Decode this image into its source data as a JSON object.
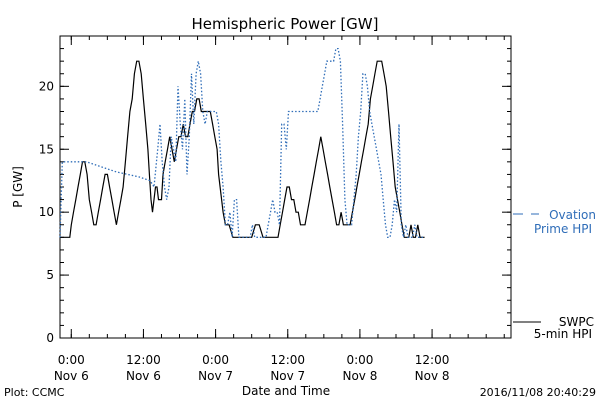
{
  "chart_data": {
    "type": "line",
    "title": "Hemispheric Power [GW]",
    "xlabel": "Date and Time",
    "ylabel": "P [GW]",
    "ylim": [
      0,
      24
    ],
    "xlim": [
      -15,
      585
    ],
    "x_unit": "minutes relative to 2016-11-06 00:00",
    "yticks": [
      {
        "value": 0,
        "label": "0"
      },
      {
        "value": 5,
        "label": "5"
      },
      {
        "value": 10,
        "label": "10"
      },
      {
        "value": 15,
        "label": "15"
      },
      {
        "value": 20,
        "label": "20"
      }
    ],
    "xticks": [
      {
        "value": 0,
        "time": "0:00",
        "date": "Nov 6"
      },
      {
        "value": 96,
        "time": "12:00",
        "date": "Nov 6"
      },
      {
        "value": 192,
        "time": "0:00",
        "date": "Nov 7"
      },
      {
        "value": 288,
        "time": "12:00",
        "date": "Nov 7"
      },
      {
        "value": 384,
        "time": "0:00",
        "date": "Nov 8"
      },
      {
        "value": 480,
        "time": "12:00",
        "date": "Nov 8"
      }
    ],
    "grid": false,
    "series": [
      {
        "name": "SWPC 5-min HPI",
        "style": "solid",
        "color": "#000000",
        "points": [
          [
            -15,
            8
          ],
          [
            -2,
            8
          ],
          [
            0,
            9
          ],
          [
            3,
            10
          ],
          [
            6,
            11
          ],
          [
            9,
            12
          ],
          [
            12,
            13
          ],
          [
            15,
            14
          ],
          [
            18,
            14
          ],
          [
            21,
            13
          ],
          [
            24,
            11
          ],
          [
            27,
            10
          ],
          [
            30,
            9
          ],
          [
            33,
            9
          ],
          [
            36,
            10
          ],
          [
            39,
            11
          ],
          [
            42,
            12
          ],
          [
            45,
            13
          ],
          [
            48,
            13
          ],
          [
            51,
            12
          ],
          [
            54,
            11
          ],
          [
            57,
            10
          ],
          [
            60,
            9
          ],
          [
            63,
            10
          ],
          [
            66,
            11
          ],
          [
            69,
            12
          ],
          [
            72,
            14
          ],
          [
            75,
            16
          ],
          [
            78,
            18
          ],
          [
            81,
            19
          ],
          [
            84,
            21
          ],
          [
            87,
            22
          ],
          [
            90,
            22
          ],
          [
            93,
            21
          ],
          [
            96,
            19
          ],
          [
            99,
            17
          ],
          [
            102,
            15
          ],
          [
            104,
            13
          ],
          [
            106,
            11
          ],
          [
            108,
            10
          ],
          [
            110,
            11
          ],
          [
            112,
            12
          ],
          [
            114,
            12
          ],
          [
            116,
            11
          ],
          [
            118,
            11
          ],
          [
            120,
            11
          ],
          [
            122,
            13
          ],
          [
            125,
            14
          ],
          [
            128,
            15
          ],
          [
            131,
            16
          ],
          [
            134,
            15
          ],
          [
            137,
            14
          ],
          [
            140,
            15
          ],
          [
            143,
            16
          ],
          [
            146,
            16
          ],
          [
            149,
            17
          ],
          [
            152,
            16
          ],
          [
            155,
            16
          ],
          [
            158,
            17
          ],
          [
            161,
            18
          ],
          [
            164,
            18
          ],
          [
            167,
            19
          ],
          [
            170,
            19
          ],
          [
            173,
            18
          ],
          [
            176,
            18
          ],
          [
            179,
            18
          ],
          [
            182,
            18
          ],
          [
            185,
            18
          ],
          [
            188,
            17
          ],
          [
            191,
            16
          ],
          [
            194,
            15
          ],
          [
            196,
            13
          ],
          [
            198,
            12
          ],
          [
            200,
            11
          ],
          [
            202,
            10
          ],
          [
            205,
            9
          ],
          [
            210,
            9
          ],
          [
            215,
            8
          ],
          [
            220,
            8
          ],
          [
            225,
            8
          ],
          [
            230,
            8
          ],
          [
            235,
            8
          ],
          [
            240,
            8
          ],
          [
            245,
            9
          ],
          [
            250,
            9
          ],
          [
            255,
            8
          ],
          [
            260,
            8
          ],
          [
            265,
            8
          ],
          [
            270,
            8
          ],
          [
            275,
            8
          ],
          [
            278,
            9
          ],
          [
            281,
            10
          ],
          [
            284,
            11
          ],
          [
            287,
            12
          ],
          [
            290,
            12
          ],
          [
            293,
            11
          ],
          [
            296,
            11
          ],
          [
            299,
            10
          ],
          [
            302,
            10
          ],
          [
            305,
            9
          ],
          [
            308,
            9
          ],
          [
            311,
            9
          ],
          [
            314,
            10
          ],
          [
            317,
            11
          ],
          [
            320,
            12
          ],
          [
            323,
            13
          ],
          [
            326,
            14
          ],
          [
            329,
            15
          ],
          [
            332,
            16
          ],
          [
            335,
            15
          ],
          [
            338,
            14
          ],
          [
            341,
            13
          ],
          [
            344,
            12
          ],
          [
            347,
            11
          ],
          [
            350,
            10
          ],
          [
            353,
            9
          ],
          [
            356,
            9
          ],
          [
            359,
            10
          ],
          [
            362,
            9
          ],
          [
            365,
            9
          ],
          [
            368,
            9
          ],
          [
            371,
            9
          ],
          [
            374,
            10
          ],
          [
            377,
            11
          ],
          [
            380,
            12
          ],
          [
            383,
            13
          ],
          [
            386,
            14
          ],
          [
            389,
            15
          ],
          [
            392,
            16
          ],
          [
            395,
            17
          ],
          [
            398,
            19
          ],
          [
            401,
            20
          ],
          [
            404,
            21
          ],
          [
            407,
            22
          ],
          [
            410,
            22
          ],
          [
            413,
            22
          ],
          [
            416,
            21
          ],
          [
            419,
            20
          ],
          [
            422,
            18
          ],
          [
            425,
            16
          ],
          [
            428,
            14
          ],
          [
            431,
            12
          ],
          [
            434,
            11
          ],
          [
            437,
            10
          ],
          [
            440,
            9
          ],
          [
            443,
            8
          ],
          [
            446,
            8
          ],
          [
            449,
            8
          ],
          [
            452,
            9
          ],
          [
            455,
            8
          ],
          [
            458,
            8
          ],
          [
            461,
            9
          ],
          [
            464,
            8
          ],
          [
            467,
            8
          ],
          [
            470,
            8
          ]
        ]
      },
      {
        "name": "Ovation Prime HPI",
        "style": "dotted",
        "color": "#2f6db8",
        "points": [
          [
            -15,
            8
          ],
          [
            -12,
            14
          ],
          [
            -8,
            14
          ],
          [
            0,
            14
          ],
          [
            5,
            14
          ],
          [
            10,
            14
          ],
          [
            15,
            14
          ],
          [
            20,
            14
          ],
          [
            30,
            13.8
          ],
          [
            45,
            13.5
          ],
          [
            60,
            13.2
          ],
          [
            75,
            13
          ],
          [
            90,
            12.8
          ],
          [
            105,
            12.5
          ],
          [
            110,
            12
          ],
          [
            115,
            15
          ],
          [
            118,
            17
          ],
          [
            121,
            14
          ],
          [
            124,
            12
          ],
          [
            127,
            11
          ],
          [
            130,
            12
          ],
          [
            133,
            16
          ],
          [
            136,
            15
          ],
          [
            139,
            14
          ],
          [
            142,
            20
          ],
          [
            145,
            17
          ],
          [
            148,
            15
          ],
          [
            151,
            19
          ],
          [
            154,
            13
          ],
          [
            157,
            16
          ],
          [
            160,
            21
          ],
          [
            163,
            17
          ],
          [
            166,
            21
          ],
          [
            169,
            22
          ],
          [
            172,
            21
          ],
          [
            175,
            18
          ],
          [
            178,
            17
          ],
          [
            181,
            18
          ],
          [
            184,
            18
          ],
          [
            187,
            18
          ],
          [
            190,
            18
          ],
          [
            193,
            18
          ],
          [
            196,
            17
          ],
          [
            199,
            14
          ],
          [
            202,
            12
          ],
          [
            205,
            9
          ],
          [
            208,
            9
          ],
          [
            211,
            10
          ],
          [
            214,
            8
          ],
          [
            217,
            11
          ],
          [
            220,
            11
          ],
          [
            223,
            8
          ],
          [
            226,
            8
          ],
          [
            229,
            8
          ],
          [
            232,
            8
          ],
          [
            235,
            8
          ],
          [
            238,
            8
          ],
          [
            241,
            9
          ],
          [
            244,
            8
          ],
          [
            247,
            8
          ],
          [
            250,
            8
          ],
          [
            253,
            8
          ],
          [
            256,
            8
          ],
          [
            259,
            8
          ],
          [
            262,
            9
          ],
          [
            265,
            10
          ],
          [
            268,
            11
          ],
          [
            271,
            10
          ],
          [
            274,
            10
          ],
          [
            277,
            9
          ],
          [
            280,
            17
          ],
          [
            283,
            17
          ],
          [
            286,
            15
          ],
          [
            289,
            18
          ],
          [
            292,
            18
          ],
          [
            295,
            18
          ],
          [
            298,
            18
          ],
          [
            301,
            18
          ],
          [
            304,
            18
          ],
          [
            307,
            18
          ],
          [
            310,
            18
          ],
          [
            313,
            18
          ],
          [
            316,
            18
          ],
          [
            319,
            18
          ],
          [
            322,
            18
          ],
          [
            325,
            18
          ],
          [
            328,
            18
          ],
          [
            331,
            19
          ],
          [
            334,
            20
          ],
          [
            337,
            21
          ],
          [
            340,
            22
          ],
          [
            343,
            22
          ],
          [
            346,
            22
          ],
          [
            349,
            22
          ],
          [
            352,
            23
          ],
          [
            355,
            23
          ],
          [
            358,
            22
          ],
          [
            361,
            17
          ],
          [
            364,
            11
          ],
          [
            367,
            9
          ],
          [
            370,
            9
          ],
          [
            373,
            9
          ],
          [
            376,
            11
          ],
          [
            379,
            13
          ],
          [
            382,
            16
          ],
          [
            385,
            18
          ],
          [
            388,
            21
          ],
          [
            391,
            21
          ],
          [
            394,
            20
          ],
          [
            397,
            18
          ],
          [
            400,
            17
          ],
          [
            403,
            16
          ],
          [
            406,
            15
          ],
          [
            409,
            14
          ],
          [
            412,
            13
          ],
          [
            415,
            11
          ],
          [
            418,
            9
          ],
          [
            421,
            8
          ],
          [
            424,
            8
          ],
          [
            427,
            9
          ],
          [
            430,
            11
          ],
          [
            433,
            10
          ],
          [
            436,
            17
          ],
          [
            439,
            9
          ],
          [
            442,
            8
          ],
          [
            445,
            9
          ],
          [
            448,
            8
          ],
          [
            451,
            8
          ],
          [
            454,
            8
          ],
          [
            457,
            9
          ],
          [
            460,
            8
          ],
          [
            463,
            8
          ],
          [
            466,
            8
          ],
          [
            470,
            8
          ]
        ]
      }
    ],
    "legend": [
      {
        "series": "Ovation Prime HPI",
        "lines": [
          "Ovation",
          "Prime HPI"
        ],
        "placement": "right-middle"
      },
      {
        "series": "SWPC 5-min HPI",
        "lines": [
          "SWPC",
          "5-min HPI"
        ],
        "placement": "right-bottom"
      }
    ]
  },
  "footer": {
    "left": "Plot: CCMC",
    "right": "2016/11/08 20:40:29"
  }
}
